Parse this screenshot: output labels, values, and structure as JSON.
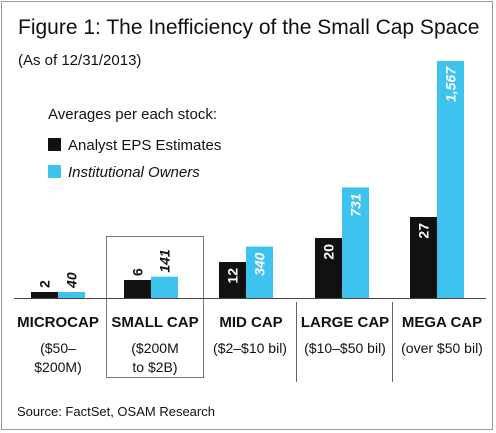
{
  "figure": {
    "title": "Figure 1: The Inefficiency of the Small Cap Space",
    "subtitle": "(As of 12/31/2013)",
    "source": "Source: FactSet, OSAM Research"
  },
  "legend": {
    "title": "Averages per each stock:",
    "items": [
      {
        "label": "Analyst EPS Estimates",
        "color": "#111111",
        "italic": false
      },
      {
        "label": "Institutional Owners",
        "color": "#3ec3ef",
        "italic": true
      }
    ]
  },
  "categories": [
    {
      "name": "MICROCAP",
      "range_lines": [
        "($50–",
        "$200M)"
      ]
    },
    {
      "name": "SMALL CAP",
      "range_lines": [
        "($200M",
        "to $2B)"
      ],
      "highlighted": true
    },
    {
      "name": "MID CAP",
      "range_lines": [
        "($2–$10 bil)"
      ]
    },
    {
      "name": "LARGE CAP",
      "range_lines": [
        "($10–$50 bil)"
      ]
    },
    {
      "name": "MEGA CAP",
      "range_lines": [
        "(over $50 bil)"
      ]
    }
  ],
  "chart_data": {
    "type": "bar",
    "title": "Figure 1: The Inefficiency of the Small Cap Space",
    "subtitle": "(As of 12/31/2013)",
    "categories": [
      "MICROCAP",
      "SMALL CAP",
      "MID CAP",
      "LARGE CAP",
      "MEGA CAP"
    ],
    "series": [
      {
        "name": "Analyst EPS Estimates",
        "color": "#111111",
        "values": [
          2,
          6,
          12,
          20,
          27
        ],
        "labels": [
          "2",
          "6",
          "12",
          "20",
          "27"
        ]
      },
      {
        "name": "Institutional Owners",
        "color": "#3ec3ef",
        "values": [
          40,
          141,
          340,
          731,
          1567
        ],
        "labels": [
          "40",
          "141",
          "340",
          "731",
          "1,567"
        ]
      }
    ],
    "grid": false,
    "legend_position": "top-left"
  }
}
